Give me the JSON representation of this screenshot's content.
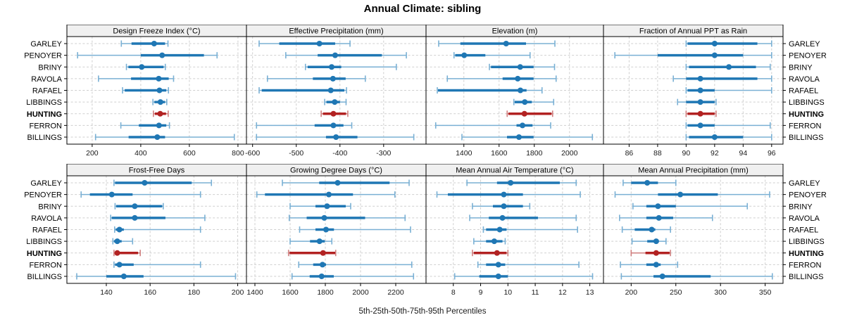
{
  "title": "Annual Climate: sibling",
  "caption": "5th-25th-50th-75th-95th Percentiles",
  "stations": [
    "GARLEY",
    "PENOYER",
    "BRINY",
    "RAVOLA",
    "RAFAEL",
    "LIBBINGS",
    "HUNTING",
    "FERRON",
    "BILLINGS"
  ],
  "highlight_station": "HUNTING",
  "percentiles_shown": [
    "5th",
    "25th",
    "50th",
    "75th",
    "95th"
  ],
  "colors": {
    "series": "#1f77b4",
    "series_light": "#7ab0d4",
    "highlight": "#b22222",
    "highlight_light": "#cf7f7f",
    "header_bg": "#f0f0f0",
    "grid": "#cfcfcf",
    "border": "#000000",
    "text": "#1a1a1a"
  },
  "chart_data": {
    "type": "trellis-dotplot-whiskers",
    "layout": {
      "rows": 2,
      "cols": 4,
      "legend": "none",
      "grid": "dashed"
    },
    "panels": [
      {
        "title": "Design Freeze Index (°C)",
        "ticks": [
          200,
          400,
          600,
          800
        ],
        "domain": [
          96,
          835
        ],
        "values": {
          "GARLEY": [
            320,
            362,
            455,
            500,
            512
          ],
          "PENOYER": [
            140,
            400,
            488,
            660,
            714
          ],
          "BRINY": [
            341,
            349,
            404,
            494,
            501
          ],
          "RAVOLA": [
            226,
            360,
            474,
            515,
            535
          ],
          "RAFAEL": [
            325,
            334,
            477,
            505,
            514
          ],
          "LIBBINGS": [
            450,
            456,
            481,
            500,
            507
          ],
          "HUNTING": [
            452,
            458,
            480,
            504,
            513
          ],
          "FERRON": [
            318,
            392,
            475,
            505,
            518
          ],
          "BILLINGS": [
            214,
            350,
            468,
            500,
            785
          ]
        }
      },
      {
        "title": "Effective Precipitation (mm)",
        "ticks": [
          -600,
          -500,
          -400,
          -300
        ],
        "domain": [
          -614,
          -203
        ],
        "values": {
          "GARLEY": [
            -585,
            -539,
            -447,
            -411,
            -377
          ],
          "PENOYER": [
            -524,
            -451,
            -411,
            -304,
            -248
          ],
          "BRINY": [
            -479,
            -474,
            -419,
            -397,
            -271
          ],
          "RAVOLA": [
            -566,
            -462,
            -416,
            -387,
            -342
          ],
          "RAFAEL": [
            -585,
            -579,
            -421,
            -390,
            -385
          ],
          "LIBBINGS": [
            -435,
            -431,
            -412,
            -400,
            -386
          ],
          "HUNTING": [
            -443,
            -439,
            -415,
            -386,
            -382
          ],
          "FERRON": [
            -591,
            -458,
            -415,
            -392,
            -373
          ],
          "BILLINGS": [
            -591,
            -432,
            -409,
            -360,
            -231
          ]
        }
      },
      {
        "title": "Elevation (m)",
        "ticks": [
          1400,
          1600,
          1800,
          2000
        ],
        "domain": [
          1185,
          2193
        ],
        "values": {
          "GARLEY": [
            1257,
            1380,
            1640,
            1753,
            1917
          ],
          "PENOYER": [
            1344,
            1351,
            1402,
            1522,
            1776
          ],
          "BRINY": [
            1545,
            1554,
            1720,
            1796,
            1915
          ],
          "RAVOLA": [
            1306,
            1620,
            1706,
            1796,
            1924
          ],
          "RAFAEL": [
            1249,
            1253,
            1721,
            1756,
            1844
          ],
          "LIBBINGS": [
            1684,
            1689,
            1746,
            1786,
            1910
          ],
          "HUNTING": [
            1646,
            1653,
            1744,
            1898,
            1904
          ],
          "FERRON": [
            1240,
            1699,
            1733,
            1790,
            1893
          ],
          "BILLINGS": [
            1389,
            1645,
            1713,
            1796,
            2130
          ]
        }
      },
      {
        "title": "Fraction of Annual PPT as Rain",
        "ticks": [
          86,
          88,
          90,
          92,
          94,
          96
        ],
        "domain": [
          84.2,
          96.8
        ],
        "values": {
          "GARLEY": [
            90.0,
            90.1,
            92.0,
            95.0,
            96.0
          ],
          "PENOYER": [
            85.0,
            88.0,
            92.0,
            94.0,
            96.0
          ],
          "BRINY": [
            90.0,
            90.2,
            93.0,
            94.9,
            95.9
          ],
          "RAVOLA": [
            89.1,
            90.0,
            91.0,
            95.0,
            96.0
          ],
          "RAFAEL": [
            90.0,
            90.1,
            91.0,
            92.0,
            96.0
          ],
          "LIBBINGS": [
            89.4,
            90.0,
            91.0,
            92.0,
            92.1
          ],
          "HUNTING": [
            90.0,
            90.1,
            91.0,
            92.0,
            92.1
          ],
          "FERRON": [
            90.0,
            90.1,
            91.0,
            92.0,
            95.9
          ],
          "BILLINGS": [
            90.0,
            90.2,
            92.0,
            94.0,
            96.0
          ]
        }
      },
      {
        "title": "Frost-Free Days",
        "ticks": [
          140,
          160,
          180,
          200
        ],
        "domain": [
          122,
          204
        ],
        "values": {
          "GARLEY": [
            143.5,
            144.0,
            157.5,
            179.0,
            188.0
          ],
          "PENOYER": [
            128.5,
            132.5,
            142.5,
            152.0,
            183.0
          ],
          "BRINY": [
            144.0,
            144.5,
            153.0,
            165.5,
            166.0
          ],
          "RAVOLA": [
            142.0,
            142.5,
            153.0,
            167.0,
            185.0
          ],
          "RAFAEL": [
            143.8,
            144.3,
            146.0,
            148.0,
            183.0
          ],
          "LIBBINGS": [
            143.0,
            143.5,
            145.0,
            147.0,
            152.0
          ],
          "HUNTING": [
            143.5,
            144.0,
            145.0,
            154.5,
            155.5
          ],
          "FERRON": [
            143.5,
            144.0,
            146.0,
            152.5,
            183.0
          ],
          "BILLINGS": [
            126.5,
            140.0,
            148.0,
            157.0,
            199.0
          ]
        }
      },
      {
        "title": "Growing Degree Days (°C)",
        "ticks": [
          1400,
          1600,
          1800,
          2000,
          2200
        ],
        "domain": [
          1352,
          2372
        ],
        "values": {
          "GARLEY": [
            1556,
            1765,
            1870,
            2165,
            2276
          ],
          "PENOYER": [
            1411,
            1457,
            1820,
            1957,
            2195
          ],
          "BRINY": [
            1600,
            1744,
            1810,
            1916,
            1944
          ],
          "RAVOLA": [
            1595,
            1694,
            1794,
            2026,
            2253
          ],
          "RAFAEL": [
            1654,
            1744,
            1804,
            1849,
            2284
          ],
          "LIBBINGS": [
            1600,
            1713,
            1767,
            1797,
            1837
          ],
          "HUNTING": [
            1591,
            1597,
            1787,
            1856,
            1859
          ],
          "FERRON": [
            1649,
            1731,
            1784,
            1804,
            2291
          ],
          "BILLINGS": [
            1611,
            1711,
            1779,
            1848,
            2301
          ]
        }
      },
      {
        "title": "Mean Annual Air Temperature (°C)",
        "ticks": [
          8,
          9,
          10,
          11,
          12,
          13
        ],
        "domain": [
          7.0,
          13.5
        ],
        "values": {
          "GARLEY": [
            8.5,
            9.6,
            10.1,
            11.9,
            12.5
          ],
          "PENOYER": [
            7.4,
            7.8,
            9.85,
            10.55,
            12.65
          ],
          "BRINY": [
            8.7,
            9.45,
            9.85,
            10.55,
            10.8
          ],
          "RAVOLA": [
            8.6,
            9.3,
            9.8,
            11.1,
            12.5
          ],
          "RAFAEL": [
            9.1,
            9.2,
            9.7,
            9.95,
            12.55
          ],
          "LIBBINGS": [
            8.75,
            9.2,
            9.5,
            9.8,
            9.9
          ],
          "HUNTING": [
            8.7,
            8.75,
            9.6,
            9.95,
            10.0
          ],
          "FERRON": [
            8.9,
            9.2,
            9.65,
            9.9,
            12.6
          ],
          "BILLINGS": [
            8.05,
            8.95,
            9.65,
            10.0,
            13.1
          ]
        }
      },
      {
        "title": "Mean Annual Precipitation (mm)",
        "ticks": [
          200,
          250,
          300,
          350
        ],
        "domain": [
          169,
          370
        ],
        "values": {
          "GARLEY": [
            191,
            200,
            218,
            230,
            250
          ],
          "PENOYER": [
            182,
            230,
            255,
            297,
            355
          ],
          "BRINY": [
            202,
            217,
            230,
            250,
            330
          ],
          "RAVOLA": [
            187,
            217,
            231,
            247,
            291
          ],
          "RAFAEL": [
            190,
            204,
            223,
            227,
            244
          ],
          "LIBBINGS": [
            201,
            218,
            228,
            231,
            239
          ],
          "HUNTING": [
            200,
            216,
            228,
            243,
            244
          ],
          "FERRON": [
            188,
            217,
            228,
            233,
            252
          ],
          "BILLINGS": [
            189,
            225,
            235,
            289,
            358
          ]
        }
      }
    ]
  }
}
